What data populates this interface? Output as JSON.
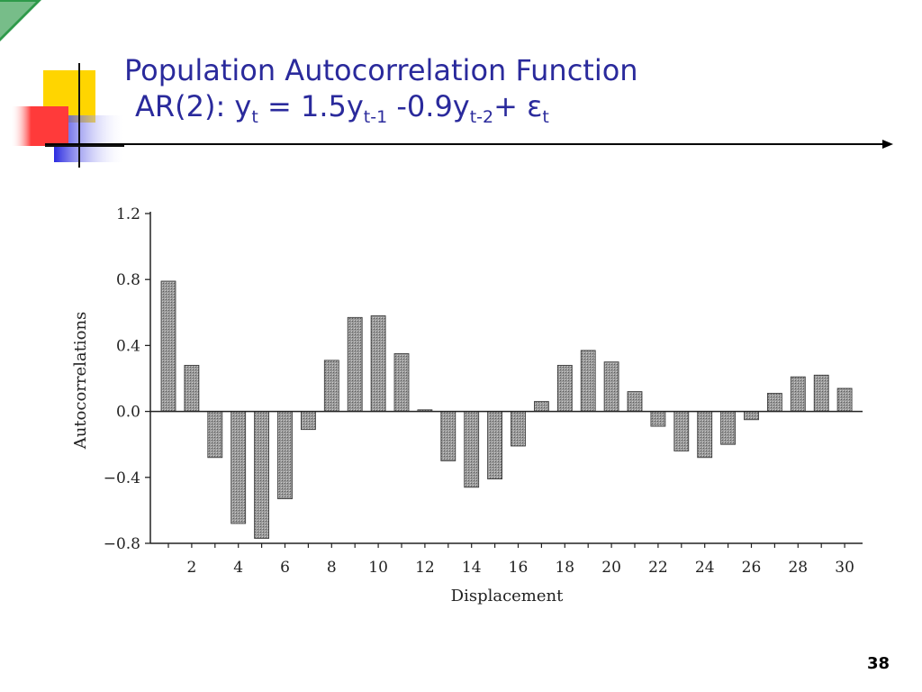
{
  "slide": {
    "title": {
      "line1": "Population Autocorrelation Function",
      "line2_prefix": "AR(2): y",
      "line2_sub1": "t",
      "line2_mid1": " = 1.5y",
      "line2_sub2": "t-1",
      "line2_mid2": " -0.9y",
      "line2_sub3": "t-2",
      "line2_mid3": "+ ε",
      "line2_sub4": "t"
    },
    "page_number": "38",
    "colors": {
      "title": "#2a2a9c",
      "deco_yellow": "#ffd500",
      "deco_red": "#ff3333",
      "deco_blue": "#3333dd",
      "deco_green": "#2e9a4a",
      "bar_fill": "#8a8a8a"
    }
  },
  "chart_data": {
    "type": "bar",
    "title": "",
    "xlabel": "Displacement",
    "ylabel": "Autocorrelations",
    "ylim": [
      -0.8,
      1.2
    ],
    "yticks": [
      "1.2",
      "0.8",
      "0.4",
      "0.0",
      "−0.4",
      "−0.8"
    ],
    "ytick_values": [
      1.2,
      0.8,
      0.4,
      0.0,
      -0.4,
      -0.8
    ],
    "xtick_labels": [
      "2",
      "4",
      "6",
      "8",
      "10",
      "12",
      "14",
      "16",
      "18",
      "20",
      "22",
      "24",
      "26",
      "28",
      "30"
    ],
    "x": [
      1,
      2,
      3,
      4,
      5,
      6,
      7,
      8,
      9,
      10,
      11,
      12,
      13,
      14,
      15,
      16,
      17,
      18,
      19,
      20,
      21,
      22,
      23,
      24,
      25,
      26,
      27,
      28,
      29,
      30
    ],
    "values": [
      0.79,
      0.28,
      -0.28,
      -0.68,
      -0.77,
      -0.53,
      -0.11,
      0.31,
      0.57,
      0.58,
      0.35,
      0.01,
      -0.3,
      -0.46,
      -0.41,
      -0.21,
      0.06,
      0.28,
      0.37,
      0.3,
      0.12,
      -0.09,
      -0.24,
      -0.28,
      -0.2,
      -0.05,
      0.11,
      0.21,
      0.22,
      0.14
    ],
    "grid": false,
    "legend": "none"
  }
}
